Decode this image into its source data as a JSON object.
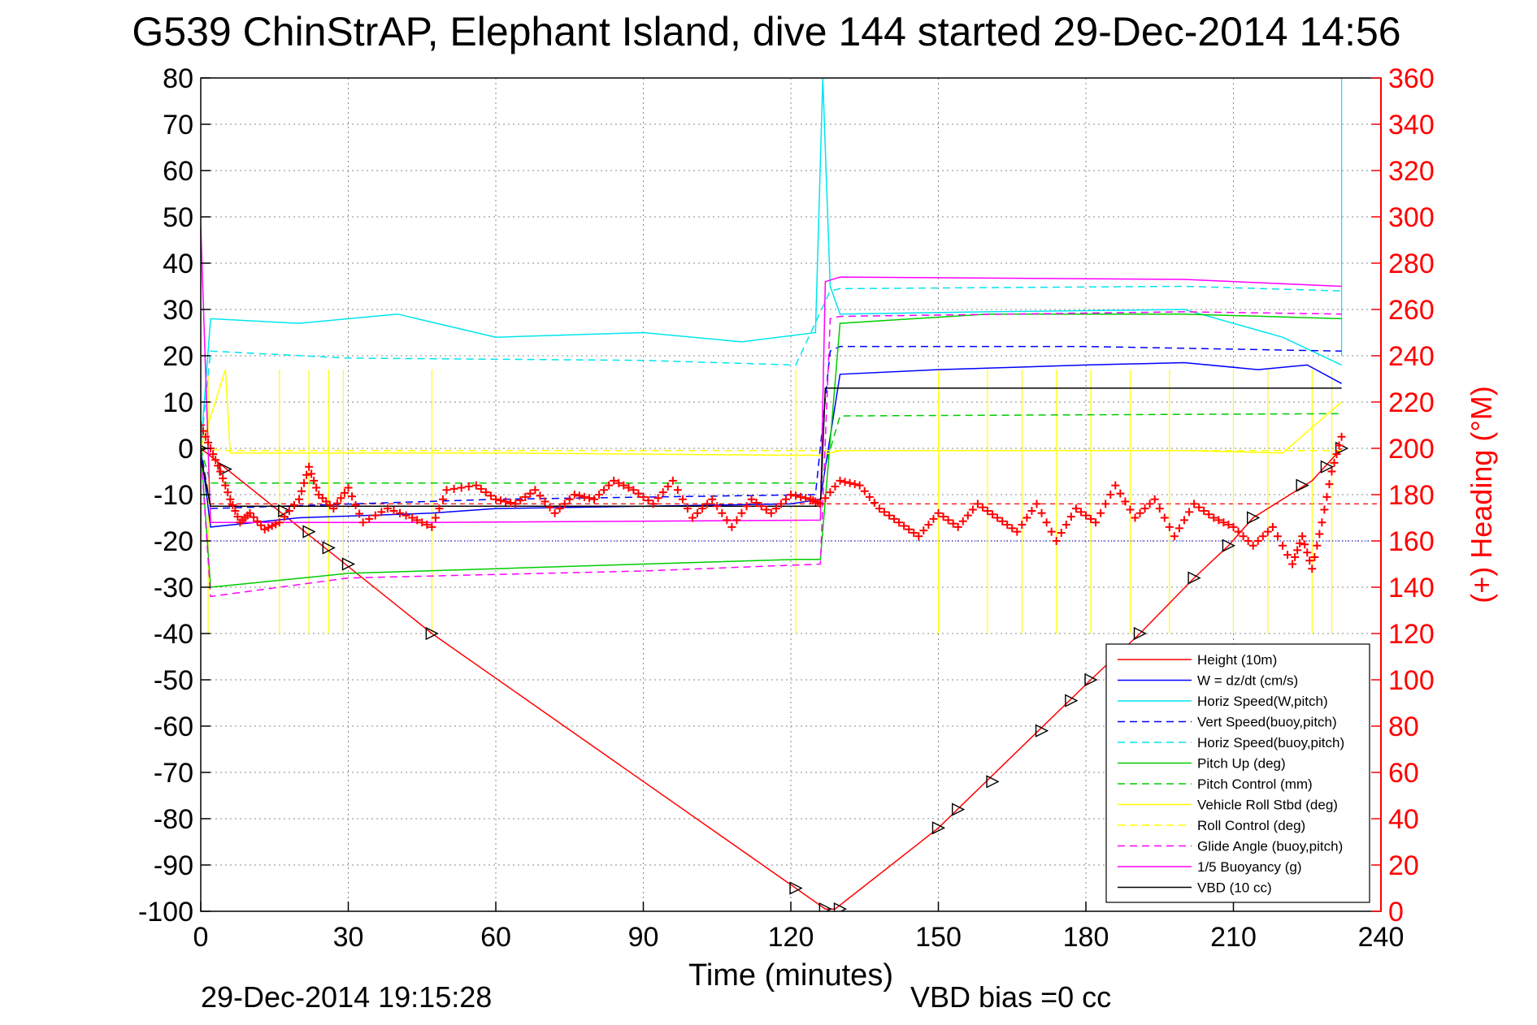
{
  "chart_data": {
    "type": "line",
    "title": "G539 ChinStrAP, Elephant Island, dive 144 started 29-Dec-2014 14:56",
    "xlabel": "Time (minutes)",
    "ylabel_right": "(+) Heading (°M)",
    "footer_left": "29-Dec-2014 19:15:28",
    "footer_right": "VBD bias =0 cc",
    "xlim": [
      0,
      240
    ],
    "ylim": [
      -100,
      80
    ],
    "ylim_right": [
      0,
      360
    ],
    "x_ticks": [
      "0",
      "30",
      "60",
      "90",
      "120",
      "150",
      "180",
      "210",
      "240"
    ],
    "y_ticks": [
      "80",
      "70",
      "60",
      "50",
      "40",
      "30",
      "20",
      "10",
      "0",
      "-10",
      "-20",
      "-30",
      "-40",
      "-50",
      "-60",
      "-70",
      "-80",
      "-90",
      "-100"
    ],
    "y_right_ticks": [
      "360",
      "340",
      "320",
      "300",
      "280",
      "260",
      "240",
      "220",
      "200",
      "180",
      "160",
      "140",
      "120",
      "100",
      "80",
      "60",
      "40",
      "20",
      "0"
    ],
    "grid": true,
    "legend_position": "bottom-right",
    "colors": {
      "red": "#ff0000",
      "blue": "#0000ff",
      "cyan": "#00e5ee",
      "green": "#00cc00",
      "yellow": "#ffff00",
      "magenta": "#ff00ff",
      "black": "#000000"
    },
    "series": [
      {
        "name": "Height (10m)",
        "color": "#ff0000",
        "style": "solid",
        "x": [
          0,
          47,
          121,
          127,
          129,
          150,
          181,
          191,
          202,
          209,
          214,
          226,
          232
        ],
        "y": [
          0,
          -40,
          -95,
          -99.5,
          -99.5,
          -82,
          -50,
          -40,
          -28,
          -21,
          -15,
          -7,
          0
        ]
      },
      {
        "name": "W = dz/dt (cm/s)",
        "color": "#0000ff",
        "style": "solid",
        "x": [
          0,
          2,
          20,
          47,
          60,
          90,
          120,
          126,
          130,
          150,
          180,
          200,
          215,
          225,
          232
        ],
        "y": [
          0,
          -17,
          -15,
          -14,
          -13,
          -12.5,
          -12,
          -11,
          16,
          17,
          18,
          18.5,
          17,
          18,
          14
        ]
      },
      {
        "name": "Horiz Speed(W,pitch)",
        "color": "#00e5ee",
        "style": "solid",
        "x": [
          0,
          2,
          20,
          40,
          60,
          90,
          110,
          125,
          126.5,
          128,
          130,
          160,
          200,
          220,
          232
        ],
        "y": [
          0,
          28,
          27,
          29,
          24,
          25,
          23,
          25,
          80,
          35,
          29,
          29.5,
          30,
          24,
          18
        ]
      },
      {
        "name": "Vert Speed(buoy,pitch)",
        "color": "#0000ff",
        "style": "dashed",
        "x": [
          0,
          2,
          60,
          125,
          128,
          130,
          180,
          232
        ],
        "y": [
          0,
          -13,
          -11,
          -10,
          21,
          22,
          22,
          21
        ]
      },
      {
        "name": "Horiz Speed(buoy,pitch)",
        "color": "#00e5ee",
        "style": "dashed",
        "x": [
          0,
          2,
          30,
          90,
          121,
          128,
          130,
          200,
          232
        ],
        "y": [
          0,
          21,
          19.5,
          19,
          18,
          34,
          34.5,
          35,
          34
        ]
      },
      {
        "name": "Pitch Up (deg)",
        "color": "#00cc00",
        "style": "solid",
        "x": [
          0,
          2,
          30,
          60,
          90,
          121,
          126,
          130,
          160,
          200,
          232
        ],
        "y": [
          0,
          -30,
          -27,
          -26,
          -25,
          -24,
          -24,
          27,
          29,
          29,
          28
        ]
      },
      {
        "name": "Pitch Control (mm)",
        "color": "#00cc00",
        "style": "dashed",
        "x": [
          0,
          2,
          126,
          130,
          232
        ],
        "y": [
          0,
          -7.5,
          -7.5,
          7,
          7.5
        ]
      },
      {
        "name": "Vehicle Roll Stbd (deg)",
        "color": "#ffff00",
        "style": "solid",
        "x": [
          0,
          5,
          6,
          20,
          60,
          120,
          126,
          130,
          200,
          220,
          232
        ],
        "y": [
          0,
          17,
          -1,
          -1,
          -1,
          -1.5,
          -1.5,
          -0.5,
          -0.5,
          -1,
          10
        ]
      },
      {
        "name": "Roll Control (deg)",
        "color": "#ffff00",
        "style": "dashed",
        "x": [
          0,
          5,
          126,
          232
        ],
        "y": [
          0,
          -0.5,
          -0.5,
          -0.5
        ]
      },
      {
        "name": "Glide Angle (buoy,pitch)",
        "color": "#ff00ff",
        "style": "dashed",
        "x": [
          0,
          2,
          30,
          90,
          126,
          128,
          130,
          200,
          232
        ],
        "y": [
          0,
          -32,
          -28,
          -26.5,
          -25,
          28,
          28.5,
          29.5,
          29
        ]
      },
      {
        "name": "1/5 Buoyancy (g)",
        "color": "#ff00ff",
        "style": "solid",
        "x": [
          0,
          2,
          47,
          126,
          127,
          130,
          200,
          232
        ],
        "y": [
          48,
          -16,
          -16,
          -15.5,
          36,
          37,
          36.5,
          35
        ]
      },
      {
        "name": "VBD (10 cc)",
        "color": "#000000",
        "style": "solid",
        "x": [
          0,
          2,
          126,
          127,
          132,
          232
        ],
        "y": [
          -2,
          -12.5,
          -12.5,
          13,
          13,
          13
        ]
      }
    ],
    "heading_series": {
      "name": "(+) Heading (°M)",
      "color": "#ff0000",
      "marker": "+",
      "x": [
        0,
        2,
        4,
        6,
        8,
        10,
        13,
        16,
        20,
        22,
        24,
        27,
        30,
        33,
        38,
        43,
        47,
        50,
        56,
        60,
        64,
        68,
        72,
        76,
        80,
        84,
        88,
        92,
        96,
        100,
        104,
        108,
        112,
        116,
        120,
        124,
        126,
        130,
        134,
        138,
        142,
        146,
        150,
        154,
        158,
        162,
        166,
        170,
        174,
        178,
        182,
        186,
        190,
        194,
        198,
        202,
        206,
        210,
        214,
        218,
        222,
        224,
        226,
        228,
        230,
        232
      ],
      "y": [
        210,
        200,
        190,
        178,
        168,
        172,
        165,
        168,
        178,
        192,
        180,
        174,
        183,
        168,
        174,
        170,
        166,
        182,
        184,
        178,
        176,
        182,
        172,
        180,
        178,
        186,
        182,
        176,
        186,
        170,
        178,
        166,
        178,
        172,
        180,
        178,
        176,
        186,
        184,
        174,
        168,
        162,
        172,
        166,
        176,
        170,
        164,
        176,
        160,
        174,
        168,
        184,
        170,
        178,
        162,
        176,
        170,
        166,
        158,
        166,
        150,
        162,
        148,
        168,
        190,
        205
      ]
    },
    "triangle_markers": [
      [
        0,
        0
      ],
      [
        5,
        -4.5
      ],
      [
        17,
        -13.5
      ],
      [
        22,
        -18
      ],
      [
        26,
        -21.5
      ],
      [
        30,
        -25
      ],
      [
        47,
        -40
      ],
      [
        121,
        -95
      ],
      [
        127,
        -99.5
      ],
      [
        130,
        -99.5
      ],
      [
        150,
        -82
      ],
      [
        154,
        -78
      ],
      [
        161,
        -72
      ],
      [
        171,
        -61
      ],
      [
        177,
        -54.5
      ],
      [
        181,
        -50
      ],
      [
        191,
        -40
      ],
      [
        202,
        -28
      ],
      [
        209,
        -21
      ],
      [
        214,
        -15
      ],
      [
        224,
        -8
      ],
      [
        229,
        -4
      ],
      [
        232,
        0
      ]
    ],
    "reference_lines": [
      {
        "color": "#ff0000",
        "style": "dashed",
        "y_right": 176
      },
      {
        "color": "#0000ff",
        "style": "dotted",
        "y": -20
      }
    ],
    "spikes": [
      {
        "color": "#ffff00",
        "x": [
          1.5,
          16,
          22,
          26,
          29,
          47,
          121,
          150,
          160,
          167,
          174,
          181,
          189,
          197,
          210,
          217,
          226,
          230
        ]
      },
      {
        "color": "#00e5ee",
        "x": [
          232
        ]
      }
    ]
  }
}
